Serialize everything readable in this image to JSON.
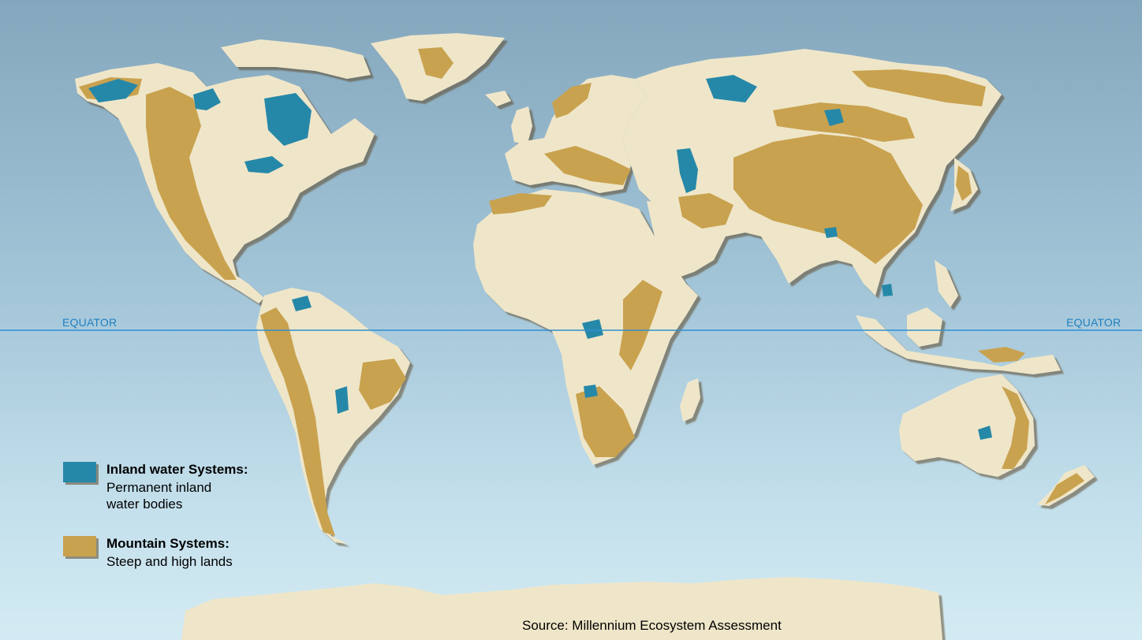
{
  "equator": {
    "label_left": "EQUATOR",
    "label_right": "EQUATOR"
  },
  "legend": {
    "items": [
      {
        "title": "Inland water Systems:",
        "description": "Permanent inland\nwater bodies",
        "color": "#2688a8"
      },
      {
        "title": "Mountain Systems:",
        "description": "Steep and high lands",
        "color": "#c9a24f"
      }
    ]
  },
  "source": "Source: Millennium Ecosystem Assessment",
  "colors": {
    "land": "#efe6c9",
    "mountain": "#c9a24f",
    "water": "#2688a8",
    "ocean_top": "#84a7bd",
    "ocean_bottom": "#d3ebf3",
    "equator_line": "#2f8fd0"
  }
}
